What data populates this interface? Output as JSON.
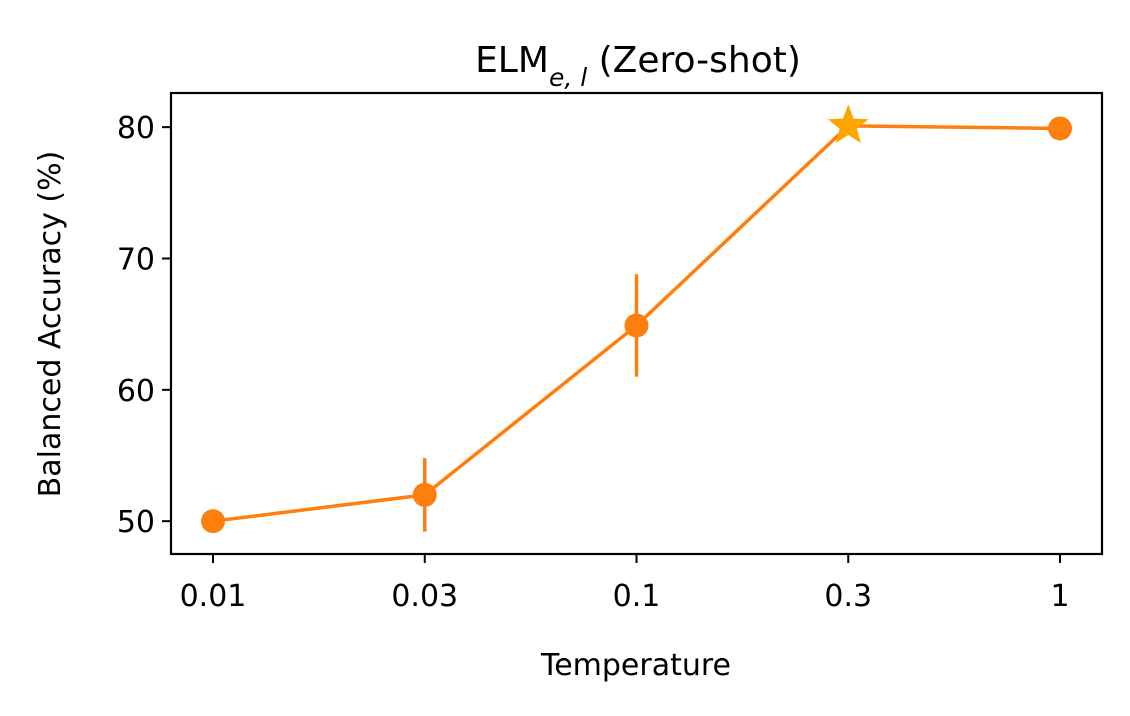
{
  "chart_data": {
    "type": "line",
    "title": {
      "base": "ELM",
      "subscript": "e, l",
      "suffix": " (Zero-shot)"
    },
    "xlabel": "Temperature",
    "ylabel": "Balanced Accuracy (%)",
    "categories": [
      "0.01",
      "0.03",
      "0.1",
      "0.3",
      "1"
    ],
    "series": [
      {
        "name": "ELM_e,l",
        "values": [
          50.0,
          52.0,
          64.9,
          80.1,
          79.9
        ],
        "error": [
          0.0,
          2.8,
          3.9,
          0.0,
          0.0
        ],
        "color": "#ff7f0e"
      }
    ],
    "best": {
      "index": 3,
      "marker": "star",
      "color": "#ffa500"
    },
    "ylim": [
      47.5,
      82.6
    ],
    "yticks": [
      50,
      60,
      70,
      80
    ],
    "grid": false,
    "legend": "none"
  }
}
